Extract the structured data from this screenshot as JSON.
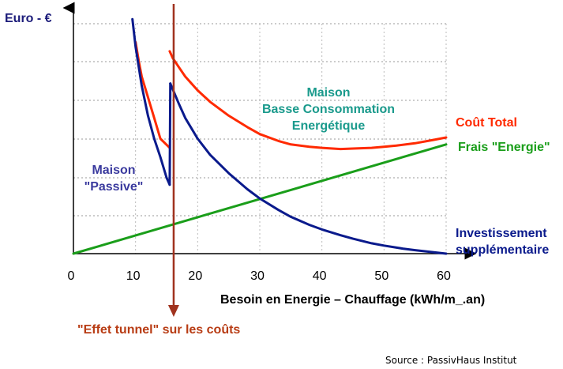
{
  "chart_data": {
    "type": "line",
    "ylabel": "Euro - €",
    "xlabel": "Besoin en Energie – Chauffage (kWh/m_.an)",
    "x_ticks": [
      "0",
      "10",
      "20",
      "30",
      "40",
      "50",
      "60"
    ],
    "xlim": [
      0,
      60
    ],
    "ylim": [
      0,
      10
    ],
    "grid": "horizontal dashed",
    "series": [
      {
        "name": "Coût Total",
        "color": "#ff2a00",
        "segments": [
          {
            "x": [
              10,
              10.5,
              11,
              12,
              13,
              14,
              15.5
            ],
            "y": [
              9.2,
              8.4,
              7.7,
              6.8,
              5.9,
              5.0,
              4.6
            ]
          },
          {
            "x": [
              15.5,
              16,
              17,
              18,
              20,
              22,
              25,
              28,
              30,
              33,
              35,
              38,
              40,
              43,
              45,
              48,
              50,
              52,
              55,
              58,
              60
            ],
            "y": [
              8.8,
              8.5,
              8.1,
              7.7,
              7.1,
              6.6,
              6.0,
              5.5,
              5.2,
              4.9,
              4.75,
              4.65,
              4.6,
              4.55,
              4.57,
              4.6,
              4.65,
              4.7,
              4.8,
              4.95,
              5.05
            ]
          }
        ]
      },
      {
        "name": "Frais \"Energie\"",
        "color": "#1a9e1a",
        "segments": [
          {
            "x": [
              0,
              60
            ],
            "y": [
              0,
              4.75
            ]
          }
        ]
      },
      {
        "name": "Investissement supplémentaire",
        "color": "#0a1a8c",
        "segments": [
          {
            "x": [
              9.5,
              10,
              11,
              12,
              13,
              14,
              15,
              15.5
            ],
            "y": [
              10.2,
              9.0,
              7.3,
              6.0,
              5.0,
              4.2,
              3.3,
              3.0
            ]
          },
          {
            "x": [
              15.5,
              15.6
            ],
            "y": [
              3.0,
              7.4
            ]
          },
          {
            "x": [
              15.6,
              17,
              18,
              20,
              22,
              25,
              28,
              30,
              33,
              35,
              38,
              40,
              43,
              45,
              48,
              50,
              53,
              55,
              58,
              60
            ],
            "y": [
              7.4,
              6.5,
              5.9,
              5.0,
              4.3,
              3.5,
              2.8,
              2.4,
              1.9,
              1.6,
              1.25,
              1.05,
              0.8,
              0.65,
              0.45,
              0.35,
              0.22,
              0.15,
              0.06,
              0.0
            ]
          }
        ]
      }
    ],
    "annotations": {
      "passive": [
        "Maison",
        "\"Passive\""
      ],
      "bbc": [
        "Maison",
        "Basse Consommation",
        "Energétique"
      ],
      "cout_total": "Coût Total",
      "frais_energie": "Frais \"Energie\"",
      "investissement": [
        "Investissement",
        "supplémentaire"
      ],
      "effet_tunnel": "\"Effet tunnel\" sur les coûts",
      "source": "Source : PassivHaus Institut"
    },
    "tunnel_x": 15.5,
    "colors": {
      "red": "#ff2a00",
      "green": "#1a9e1a",
      "blue": "#0a1a8c",
      "teal": "#1a9a8c",
      "brown": "#b83c14",
      "navy": "#1c1c7a",
      "passive": "#3a3a9e"
    }
  }
}
